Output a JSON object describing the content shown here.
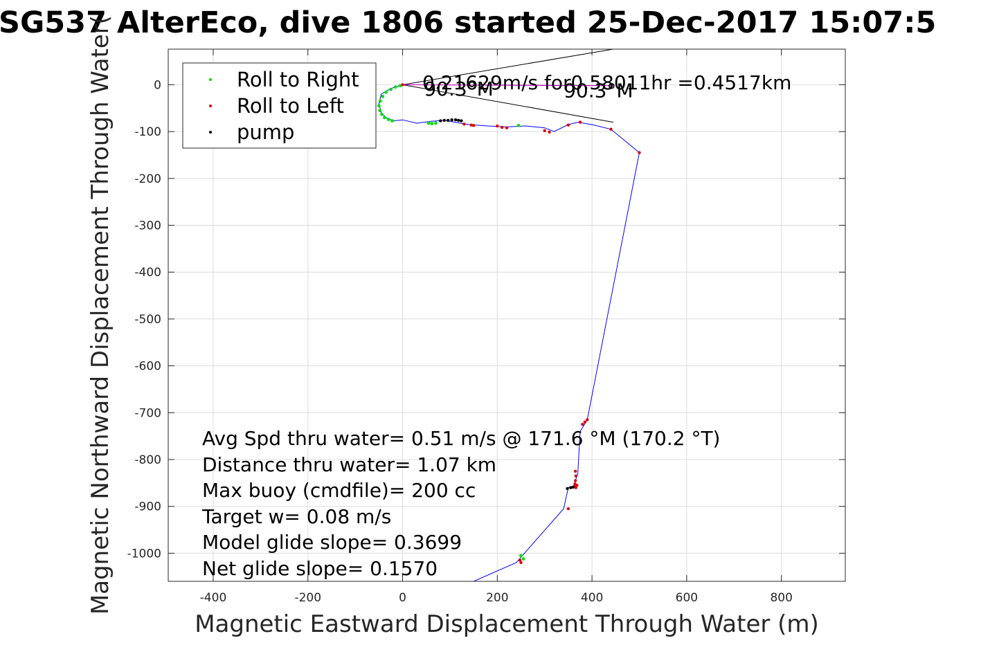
{
  "chart_data": {
    "type": "line",
    "title": "SG537 AlterEco, dive 1806 started 25-Dec-2017 15:07:5",
    "xlabel": "Magnetic Eastward Displacement Through Water (m)",
    "ylabel": "Magnetic Northward Displacement Through Water(",
    "xlim": [
      -495,
      935
    ],
    "ylim": [
      -1060,
      76
    ],
    "xticks": [
      -400,
      -200,
      0,
      200,
      400,
      600,
      800
    ],
    "yticks": [
      0,
      -100,
      -200,
      -300,
      -400,
      -500,
      -600,
      -700,
      -800,
      -900,
      -1000
    ],
    "grid": true,
    "legend_position": "top-left",
    "legend": [
      {
        "label": "Roll to Right",
        "color": "#00e000"
      },
      {
        "label": "Roll to Left",
        "color": "#e00000"
      },
      {
        "label": "pump",
        "color": "#000000"
      }
    ],
    "track": {
      "color": "#0000ff",
      "x": [
        0,
        -25,
        -45,
        -50,
        -45,
        -35,
        -20,
        0,
        30,
        60,
        90,
        110,
        140,
        180,
        220,
        260,
        300,
        320,
        350,
        370,
        400,
        440,
        500,
        390,
        375,
        370,
        360,
        355,
        350,
        340,
        240,
        150
      ],
      "y": [
        0,
        -8,
        -20,
        -40,
        -60,
        -70,
        -77,
        -75,
        -82,
        -78,
        -76,
        -80,
        -85,
        -88,
        -90,
        -88,
        -92,
        -100,
        -85,
        -80,
        -85,
        -95,
        -145,
        -715,
        -740,
        -830,
        -860,
        -858,
        -860,
        -905,
        -1020,
        -1060
      ]
    },
    "roll_right": {
      "x": [
        -5,
        -15,
        -25,
        -35,
        -42,
        -47,
        -50,
        -48,
        -44,
        -38,
        -30,
        -22,
        55,
        62,
        70,
        245,
        250,
        255
      ],
      "y": [
        -2,
        -5,
        -10,
        -16,
        -25,
        -35,
        -45,
        -55,
        -63,
        -70,
        -74,
        -77,
        -82,
        -83,
        -82,
        -87,
        -1005,
        -1012
      ]
    },
    "roll_left": {
      "x": [
        0,
        130,
        145,
        150,
        200,
        210,
        220,
        300,
        310,
        350,
        375,
        440,
        500,
        380,
        385,
        390,
        365,
        366,
        365,
        364,
        363,
        366,
        368,
        350,
        248,
        250
      ],
      "y": [
        0,
        -84,
        -86,
        -87,
        -88,
        -91,
        -92,
        -98,
        -101,
        -86,
        -80,
        -95,
        -145,
        -725,
        -720,
        -715,
        -825,
        -835,
        -845,
        -852,
        -858,
        -860,
        -855,
        -905,
        -1015,
        -1020
      ]
    },
    "pump": {
      "x": [
        80,
        88,
        96,
        104,
        112,
        118,
        124,
        348,
        355,
        360
      ],
      "y": [
        -77,
        -76,
        -76,
        -75,
        -75,
        -76,
        -77,
        -862,
        -860,
        -859
      ]
    },
    "current_arrow": {
      "label": "0.21629m/s for0.58011hr =0.4517km",
      "x_end": 445,
      "y_end": -2
    },
    "heading_annotations": [
      {
        "label": "90.3°M",
        "x": 45,
        "y": -8
      },
      {
        "label": "90.3°M",
        "x": 340,
        "y": -12
      }
    ],
    "heading_lines": [
      {
        "x": [
          0,
          445
        ],
        "y": [
          0,
          76
        ]
      },
      {
        "x": [
          0,
          445
        ],
        "y": [
          0,
          -80
        ]
      }
    ]
  },
  "stats": {
    "avg_speed": "Avg Spd thru water=  0.51 m/s @ 171.6 °M (170.2 °T)",
    "distance": "Distance thru water=  1.07 km",
    "max_buoy": "Max buoy (cmdfile)= 200 cc",
    "target_w": "Target w= 0.08 m/s",
    "model_glide": "Model glide slope= 0.3699",
    "net_glide": "Net glide slope= 0.1570"
  }
}
